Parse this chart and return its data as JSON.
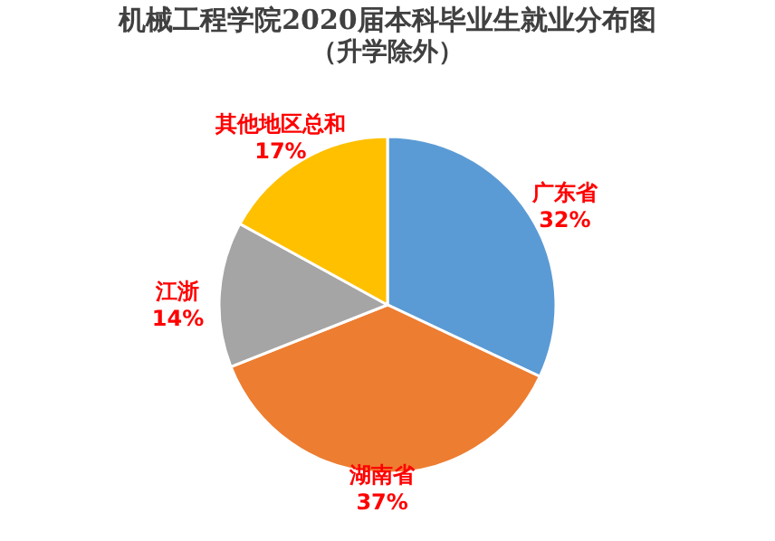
{
  "chart_data": {
    "type": "pie",
    "title": "机械工程学院2020届本科毕业生就业分布图",
    "subtitle": "（升学除外）",
    "categories": [
      "广东省",
      "湖南省",
      "江浙",
      "其他地区总和"
    ],
    "values": [
      32,
      37,
      14,
      17
    ],
    "value_labels": [
      "32%",
      "37%",
      "14%",
      "17%"
    ],
    "colors": [
      "#5b9bd5",
      "#ed7d31",
      "#a5a5a5",
      "#ffc000"
    ],
    "legend": false
  }
}
